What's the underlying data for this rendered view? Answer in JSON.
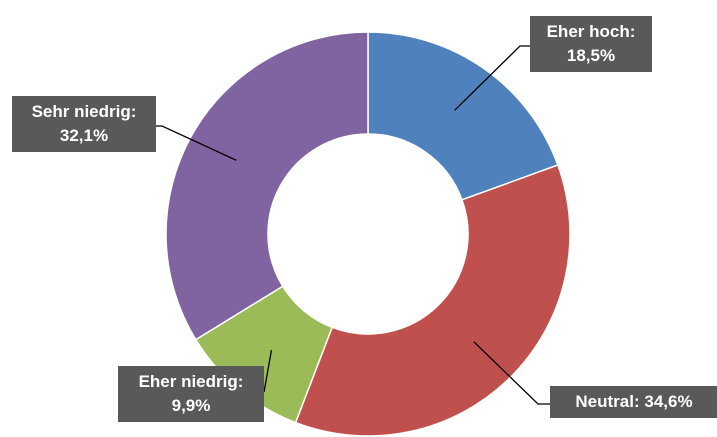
{
  "chart_data": {
    "type": "pie",
    "donut": true,
    "legend": "none",
    "slices": [
      {
        "name": "Eher hoch",
        "value": 18.5,
        "color": "#4f81bd",
        "label_name": "Eher hoch:",
        "label_value": "18,5%"
      },
      {
        "name": "Neutral",
        "value": 34.6,
        "color": "#c0504d",
        "label_name": "Neutral:",
        "label_value": "34,6%"
      },
      {
        "name": "Eher niedrig",
        "value": 9.9,
        "color": "#9bbb59",
        "label_name": "Eher niedrig:",
        "label_value": "9,9%"
      },
      {
        "name": "Sehr niedrig",
        "value": 32.1,
        "color": "#8064a2",
        "label_name": "Sehr niedrig:",
        "label_value": "32,1%"
      }
    ]
  }
}
